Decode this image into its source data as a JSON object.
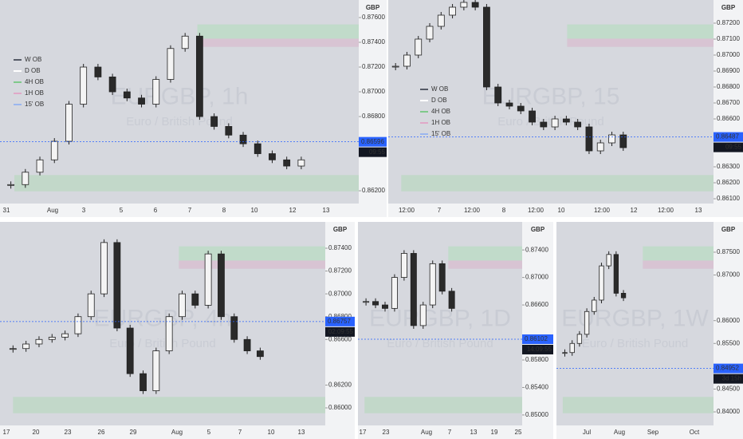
{
  "panels": [
    {
      "type": "candlestick",
      "watermark": "EURGBP, 1h",
      "watermark_sub": "Euro / British Pound",
      "currency": "GBP",
      "ylim": [
        0.86097,
        0.87742
      ],
      "yticks": [
        {
          "value": 0.876,
          "label": "0.87600"
        },
        {
          "value": 0.874,
          "label": "0.87400"
        },
        {
          "value": 0.872,
          "label": "0.87200"
        },
        {
          "value": 0.87,
          "label": "0.87000"
        },
        {
          "value": 0.868,
          "label": "0.86800"
        },
        {
          "value": 0.862,
          "label": "0.86200"
        }
      ],
      "x_labels": [
        "31",
        "Aug",
        "3",
        "5",
        "6",
        "7",
        "8",
        "10",
        "12",
        "13"
      ],
      "values": [
        0.8625,
        0.8635,
        0.8645,
        0.866,
        0.869,
        0.872,
        0.8712,
        0.87,
        0.8695,
        0.869,
        0.871,
        0.8735,
        0.8745,
        0.868,
        0.8672,
        0.8665,
        0.8658,
        0.865,
        0.8645,
        0.864,
        0.8645
      ],
      "price_tag": 0.86596,
      "countdown": "09:55",
      "legend": [
        {
          "name": "W OB",
          "color": "#555a66"
        },
        {
          "name": "D OB",
          "color": "#ffffff"
        },
        {
          "name": "4H OB",
          "color": "#7fc98a"
        },
        {
          "name": "1H OB",
          "color": "#e0a8c8"
        },
        {
          "name": "15' OB",
          "color": "#9bb6ee"
        }
      ]
    },
    {
      "type": "candlestick",
      "watermark": "EURGBP, 15",
      "watermark_sub": "Euro / British Pound",
      "currency": "GBP",
      "ylim": [
        0.8607,
        0.87345
      ],
      "yticks": [
        {
          "value": 0.872,
          "label": "0.87200"
        },
        {
          "value": 0.871,
          "label": "0.87100"
        },
        {
          "value": 0.87,
          "label": "0.87000"
        },
        {
          "value": 0.869,
          "label": "0.86900"
        },
        {
          "value": 0.868,
          "label": "0.86800"
        },
        {
          "value": 0.867,
          "label": "0.86700"
        },
        {
          "value": 0.866,
          "label": "0.86600"
        },
        {
          "value": 0.863,
          "label": "0.86300"
        },
        {
          "value": 0.862,
          "label": "0.86200"
        },
        {
          "value": 0.861,
          "label": "0.86100"
        }
      ],
      "x_labels": [
        "12:00",
        "7",
        "12:00",
        "8",
        "12:00",
        "10",
        "12:00",
        "12",
        "12:00",
        "13"
      ],
      "values": [
        0.8693,
        0.87,
        0.871,
        0.8718,
        0.8725,
        0.873,
        0.8733,
        0.873,
        0.868,
        0.867,
        0.8668,
        0.8665,
        0.8658,
        0.8655,
        0.866,
        0.8658,
        0.8655,
        0.864,
        0.8645,
        0.865,
        0.8642
      ],
      "price_tag": 0.86487,
      "countdown": "09:55",
      "legend": [
        {
          "name": "W OB",
          "color": "#555a66"
        },
        {
          "name": "D OB",
          "color": "#ffffff"
        },
        {
          "name": "4H OB",
          "color": "#7fc98a"
        },
        {
          "name": "1H OB",
          "color": "#e0a8c8"
        },
        {
          "name": "15' OB",
          "color": "#9bb6ee"
        }
      ]
    },
    {
      "type": "candlestick",
      "watermark": "EURGBP, 4h",
      "watermark_sub": "Euro / British Pound",
      "currency": "GBP",
      "ylim": [
        0.85846,
        0.87631
      ],
      "yticks": [
        {
          "value": 0.874,
          "label": "0.87400"
        },
        {
          "value": 0.872,
          "label": "0.87200"
        },
        {
          "value": 0.87,
          "label": "0.87000"
        },
        {
          "value": 0.868,
          "label": "0.86800"
        },
        {
          "value": 0.866,
          "label": "0.86600"
        },
        {
          "value": 0.862,
          "label": "0.86200"
        },
        {
          "value": 0.86,
          "label": "0.86000"
        }
      ],
      "x_labels": [
        "17",
        "20",
        "23",
        "26",
        "29",
        "Aug",
        "5",
        "7",
        "10",
        "13"
      ],
      "values": [
        0.8652,
        0.8656,
        0.866,
        0.8662,
        0.8665,
        0.868,
        0.87,
        0.8745,
        0.867,
        0.863,
        0.8615,
        0.865,
        0.868,
        0.87,
        0.869,
        0.8735,
        0.868,
        0.866,
        0.865,
        0.8645
      ],
      "price_tag": 0.86757,
      "countdown": "02:09:55"
    },
    {
      "type": "candlestick",
      "watermark": "EURGBP, 1D",
      "watermark_sub": "Euro / British Pound",
      "currency": "GBP",
      "ylim": [
        0.84848,
        0.87808
      ],
      "yticks": [
        {
          "value": 0.874,
          "label": "0.87400"
        },
        {
          "value": 0.87,
          "label": "0.87000"
        },
        {
          "value": 0.866,
          "label": "0.86600"
        },
        {
          "value": 0.858,
          "label": "0.85800"
        },
        {
          "value": 0.854,
          "label": "0.85400"
        },
        {
          "value": 0.85,
          "label": "0.85000"
        }
      ],
      "x_labels": [
        "17",
        "23",
        "Aug",
        "7",
        "13",
        "19",
        "25"
      ],
      "values": [
        0.8665,
        0.866,
        0.8655,
        0.87,
        0.8735,
        0.863,
        0.866,
        0.872,
        0.868,
        0.8655
      ],
      "price_tag": 0.86102,
      "countdown": "14:09:55"
    },
    {
      "type": "candlestick",
      "watermark": "EURGBP, 1W",
      "watermark_sub": "Euro / British Pound",
      "currency": "GBP",
      "ylim": [
        0.83703,
        0.88164
      ],
      "yticks": [
        {
          "value": 0.875,
          "label": "0.87500"
        },
        {
          "value": 0.87,
          "label": "0.87000"
        },
        {
          "value": 0.86,
          "label": "0.86000"
        },
        {
          "value": 0.855,
          "label": "0.85500"
        },
        {
          "value": 0.845,
          "label": "0.84500"
        },
        {
          "value": 0.84,
          "label": "0.84000"
        }
      ],
      "x_labels": [
        "Jul",
        "Aug",
        "Sep",
        "Oct"
      ],
      "values": [
        0.853,
        0.855,
        0.857,
        0.862,
        0.8645,
        0.872,
        0.8745,
        0.866,
        0.865
      ],
      "price_tag": 0.84952,
      "countdown": "3d 15h"
    }
  ]
}
